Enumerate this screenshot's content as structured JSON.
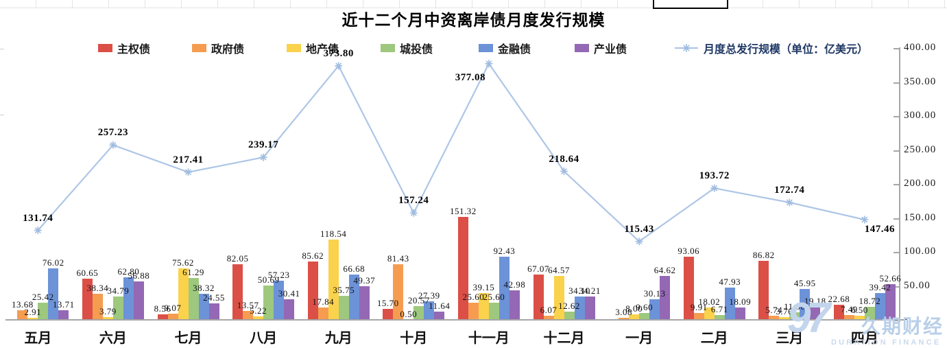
{
  "chart_data": {
    "type": "combo-bar-line",
    "title": "近十二个月中资离岸债月度发行规模",
    "categories": [
      "五月",
      "六月",
      "七月",
      "八月",
      "九月",
      "十月",
      "十一月",
      "十二月",
      "一月",
      "二月",
      "三月",
      "四月"
    ],
    "series": [
      {
        "name": "主权债",
        "color": "#db4f47",
        "values": [
          0,
          60.65,
          8.56,
          82.05,
          85.62,
          15.7,
          151.32,
          67.07,
          0,
          93.06,
          86.82,
          22.68
        ]
      },
      {
        "name": "政府债",
        "color": "#f59c51",
        "values": [
          13.68,
          38.34,
          9.07,
          13.57,
          17.84,
          81.43,
          25.6,
          6.07,
          3.08,
          9.91,
          5.74,
          7.49
        ]
      },
      {
        "name": "地产债",
        "color": "#fbd24b",
        "values": [
          2.91,
          3.79,
          75.62,
          5.22,
          118.54,
          0.5,
          39.15,
          64.57,
          8.0,
          18.02,
          3.76,
          6.5
        ]
      },
      {
        "name": "城投债",
        "color": "#9dc87e",
        "values": [
          25.42,
          34.79,
          61.29,
          50.69,
          35.75,
          20.57,
          25.6,
          12.62,
          9.6,
          6.71,
          11.3,
          18.72
        ]
      },
      {
        "name": "金融债",
        "color": "#6c92d8",
        "values": [
          76.02,
          62.8,
          38.32,
          57.23,
          66.68,
          27.39,
          92.43,
          34.1,
          30.13,
          47.93,
          45.95,
          39.42
        ]
      },
      {
        "name": "产业债",
        "color": "#9468b4",
        "values": [
          13.71,
          56.88,
          24.55,
          30.41,
          49.37,
          11.64,
          42.98,
          34.21,
          64.62,
          18.09,
          19.18,
          52.66
        ]
      }
    ],
    "line_series": {
      "name": "月度总发行规模（单位：亿美元）",
      "color": "#aec6e6",
      "marker_color": "#9fbce0",
      "text_color": "#1f3864",
      "values": [
        131.74,
        257.23,
        217.41,
        239.17,
        373.8,
        157.24,
        377.08,
        218.64,
        115.43,
        193.72,
        172.74,
        147.46
      ],
      "label_placements": [
        "above",
        "above",
        "above",
        "above",
        "above",
        "above",
        "below-left",
        "above",
        "above",
        "above",
        "above",
        "below-right"
      ]
    },
    "ylim": [
      0,
      400
    ],
    "y_axis_side": "right",
    "y_axis_ticks": [
      "400.00",
      "350.00",
      "300.00",
      "250.00",
      "200.00",
      "150.00",
      "100.00",
      "50.00",
      "-"
    ],
    "grid": false,
    "legend_position": "top"
  },
  "watermark": {
    "logo": "97",
    "cn": "久期财经",
    "en": "DURATION FINANCE"
  }
}
